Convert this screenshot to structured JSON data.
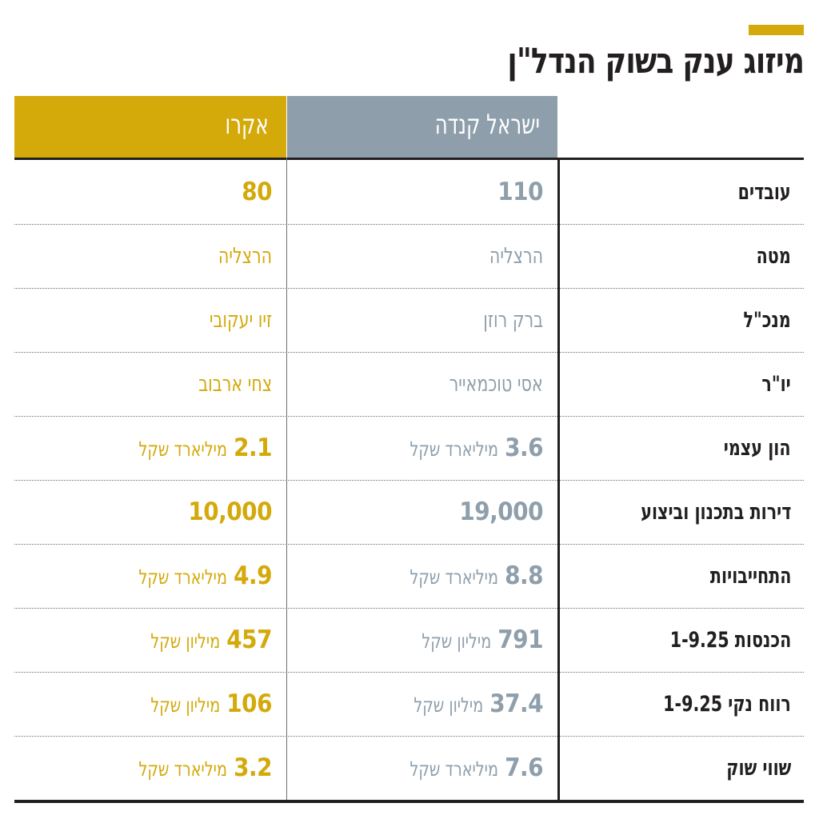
{
  "header": {
    "title": "מיזוג ענק בשוק הנדל\"ן",
    "accent_color": "#d4a90a"
  },
  "table": {
    "columns": [
      {
        "label": "",
        "color": "#231f20"
      },
      {
        "label": "ישראל קנדה",
        "color": "#8e9fab"
      },
      {
        "label": "אקרו",
        "color": "#d4a90a"
      }
    ],
    "rows": [
      {
        "label": "עובדים",
        "israel_canada": {
          "value": "110",
          "unit": ""
        },
        "acro": {
          "value": "80",
          "unit": ""
        }
      },
      {
        "label": "מטה",
        "israel_canada": {
          "value": "",
          "unit": "",
          "text": "הרצליה"
        },
        "acro": {
          "value": "",
          "unit": "",
          "text": "הרצליה"
        }
      },
      {
        "label": "מנכ\"ל",
        "israel_canada": {
          "value": "",
          "unit": "",
          "text": "ברק רוזן"
        },
        "acro": {
          "value": "",
          "unit": "",
          "text": "זיו יעקובי"
        }
      },
      {
        "label": "יו\"ר",
        "israel_canada": {
          "value": "",
          "unit": "",
          "text": "אסי טוכמאייר"
        },
        "acro": {
          "value": "",
          "unit": "",
          "text": "צחי ארבוב"
        }
      },
      {
        "label": "הון עצמי",
        "israel_canada": {
          "value": "3.6",
          "unit": "מיליארד שקל"
        },
        "acro": {
          "value": "2.1",
          "unit": "מיליארד שקל"
        }
      },
      {
        "label": "דירות בתכנון וביצוע",
        "israel_canada": {
          "value": "19,000",
          "unit": ""
        },
        "acro": {
          "value": "10,000",
          "unit": ""
        }
      },
      {
        "label": "התחייבויות",
        "israel_canada": {
          "value": "8.8",
          "unit": "מיליארד שקל"
        },
        "acro": {
          "value": "4.9",
          "unit": "מיליארד שקל"
        }
      },
      {
        "label": "הכנסות 1-9.25",
        "israel_canada": {
          "value": "791",
          "unit": "מיליון שקל"
        },
        "acro": {
          "value": "457",
          "unit": "מיליון שקל"
        }
      },
      {
        "label": "רווח נקי 1-9.25",
        "israel_canada": {
          "value": "37.4",
          "unit": "מיליון שקל"
        },
        "acro": {
          "value": "106",
          "unit": "מיליון שקל"
        }
      },
      {
        "label": "שווי שוק",
        "israel_canada": {
          "value": "7.6",
          "unit": "מיליארד שקל"
        },
        "acro": {
          "value": "3.2",
          "unit": "מיליארד שקל"
        }
      }
    ]
  }
}
